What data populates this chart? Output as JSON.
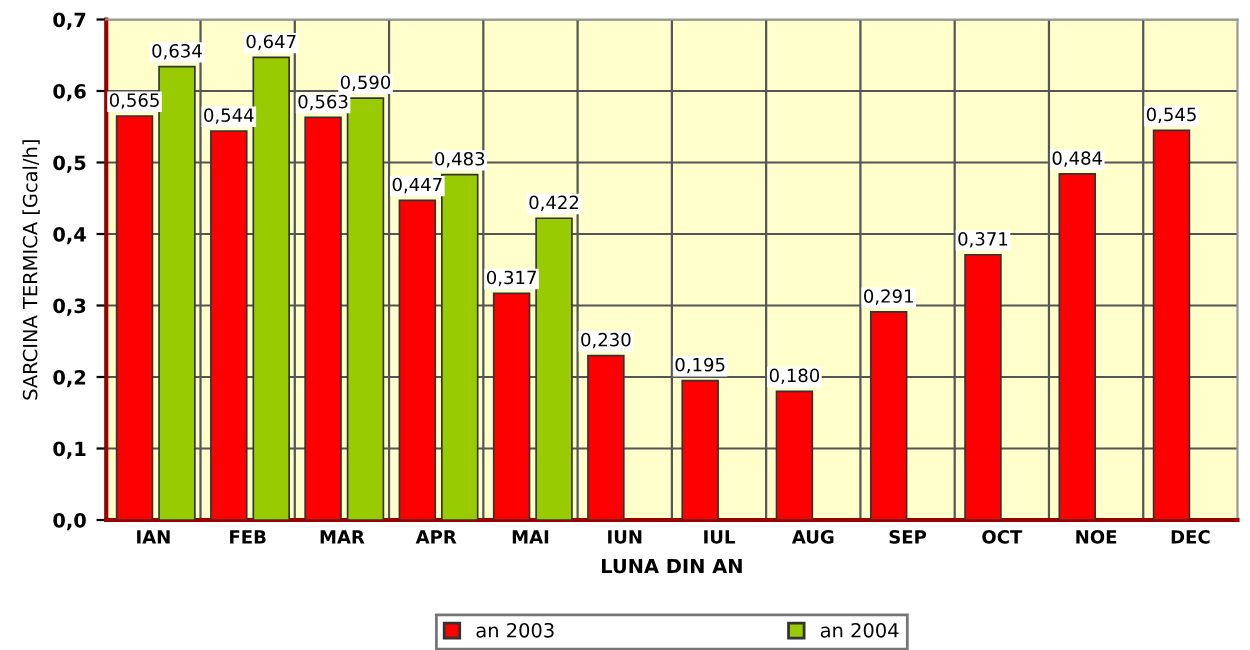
{
  "chart_data": {
    "type": "bar",
    "xlabel": "LUNA DIN AN",
    "ylabel": "SARCINA TERMICA [Gcal/h]",
    "categories": [
      "IAN",
      "FEB",
      "MAR",
      "APR",
      "MAI",
      "IUN",
      "IUL",
      "AUG",
      "SEP",
      "OCT",
      "NOE",
      "DEC"
    ],
    "series": [
      {
        "name": "an 2003",
        "color": "#ff0000",
        "values": [
          0.565,
          0.544,
          0.563,
          0.447,
          0.317,
          0.23,
          0.195,
          0.18,
          0.291,
          0.371,
          0.484,
          0.545
        ],
        "value_labels": [
          "0,565",
          "0,544",
          "0,563",
          "0,447",
          "0,317",
          "0,230",
          "0,195",
          "0,180",
          "0,291",
          "0,371",
          "0,484",
          "0,545"
        ]
      },
      {
        "name": "an 2004",
        "color": "#99cc00",
        "values": [
          0.634,
          0.647,
          0.59,
          0.483,
          0.422,
          null,
          null,
          null,
          null,
          null,
          null,
          null
        ],
        "value_labels": [
          "0,634",
          "0,647",
          "0,590",
          "0,483",
          "0,422",
          null,
          null,
          null,
          null,
          null,
          null,
          null
        ]
      }
    ],
    "ylim": [
      0,
      0.7
    ],
    "yticks": [
      {
        "value": 0,
        "label": "0,0"
      },
      {
        "value": 0.1,
        "label": "0,1"
      },
      {
        "value": 0.2,
        "label": "0,2"
      },
      {
        "value": 0.3,
        "label": "0,3"
      },
      {
        "value": 0.4,
        "label": "0,4"
      },
      {
        "value": 0.5,
        "label": "0,5"
      },
      {
        "value": 0.6,
        "label": "0,6"
      },
      {
        "value": 0.7,
        "label": "0,7"
      }
    ],
    "grid": true,
    "legend": "bottom"
  }
}
